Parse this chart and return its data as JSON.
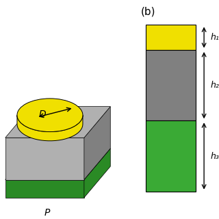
{
  "bg_color": "#ffffff",
  "label_b": "(b)",
  "label_b_fontsize": 11,
  "yellow_color": "#f0e000",
  "gray_dark_color": "#808080",
  "gray_light_color": "#b0b0b0",
  "green_color": "#3aaa35",
  "green_dark_color": "#2a8a25",
  "annotation_color": "#000000",
  "h1_label": "h",
  "h2_label": "h",
  "h3_label": "h",
  "P_label": "P",
  "D_label": "D",
  "italic_fontsize": 11,
  "panel_a_xlim": [
    0,
    1
  ],
  "panel_a_ylim": [
    0,
    1
  ],
  "panel_b_xlim": [
    0,
    1
  ],
  "panel_b_ylim": [
    0,
    1
  ]
}
